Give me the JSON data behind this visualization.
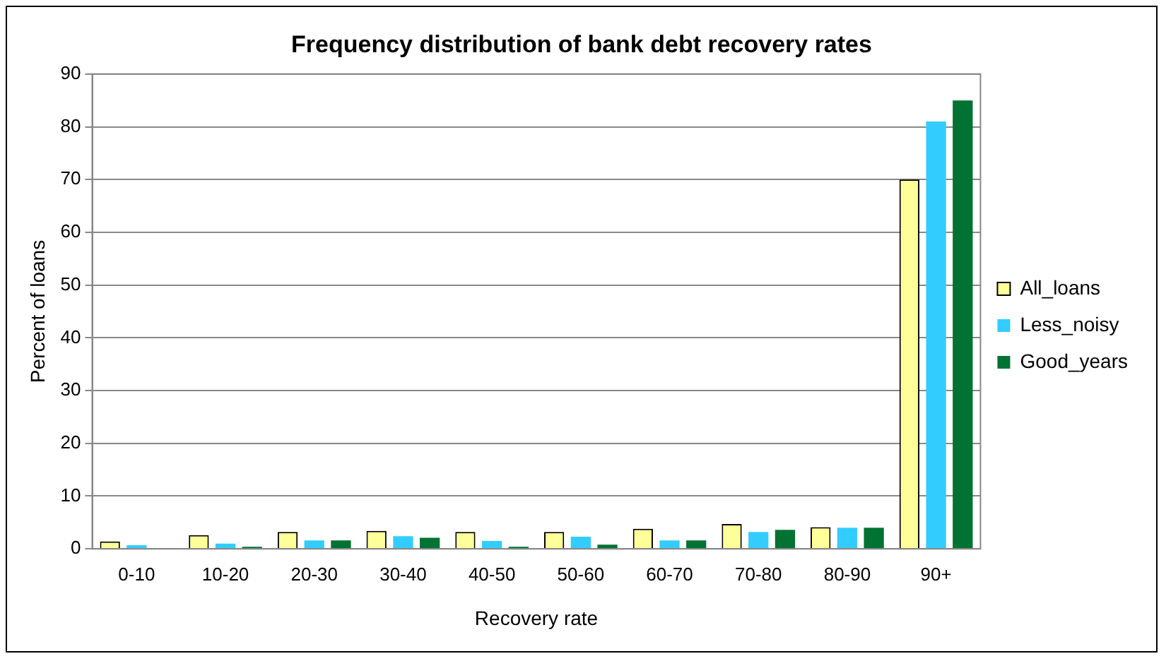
{
  "chart_data": {
    "type": "bar",
    "title": "Frequency distribution of bank debt recovery rates",
    "xlabel": "Recovery rate",
    "ylabel": "Percent of loans",
    "categories": [
      "0-10",
      "10-20",
      "20-30",
      "30-40",
      "40-50",
      "50-60",
      "60-70",
      "70-80",
      "80-90",
      "90+"
    ],
    "series": [
      {
        "name": "All_loans",
        "color": "#ffff99",
        "values": [
          1.4,
          2.6,
          3.2,
          3.4,
          3.2,
          3.2,
          3.8,
          4.7,
          4.1,
          70
        ]
      },
      {
        "name": "Less_noisy",
        "color": "#33ccff",
        "values": [
          0.7,
          1.0,
          1.6,
          2.4,
          1.5,
          2.3,
          1.6,
          3.2,
          4.0,
          81
        ]
      },
      {
        "name": "Good_years",
        "color": "#007232",
        "values": [
          0,
          0.4,
          1.6,
          2.1,
          0.4,
          0.8,
          1.6,
          3.6,
          4.0,
          85
        ]
      }
    ],
    "ylim": [
      0,
      90
    ],
    "yticks": [
      0,
      10,
      20,
      30,
      40,
      50,
      60,
      70,
      80,
      90
    ],
    "grid": "y",
    "legend": "right"
  }
}
